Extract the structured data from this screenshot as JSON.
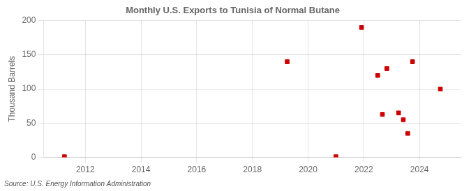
{
  "chart_data": {
    "type": "scatter",
    "title": "Monthly U.S. Exports to Tunisia of Normal Butane",
    "ylabel": "Thousand Barrels",
    "annotation": "Source: U.S. Energy Information Administration",
    "x": [
      2011.25,
      2019.25,
      2021.0,
      2021.92,
      2022.5,
      2022.67,
      2022.83,
      2023.25,
      2023.42,
      2023.58,
      2023.75,
      2024.75
    ],
    "values": [
      1,
      140,
      1,
      190,
      120,
      63,
      130,
      65,
      55,
      35,
      140,
      100
    ],
    "color": "#cc0000",
    "marker": "square",
    "xlim": [
      2010.5,
      2025.5
    ],
    "ylim": [
      0,
      200
    ],
    "xticks": [
      2012,
      2014,
      2016,
      2018,
      2020,
      2022,
      2024
    ],
    "yticks": [
      0,
      50,
      100,
      150,
      200
    ],
    "grid": true
  }
}
